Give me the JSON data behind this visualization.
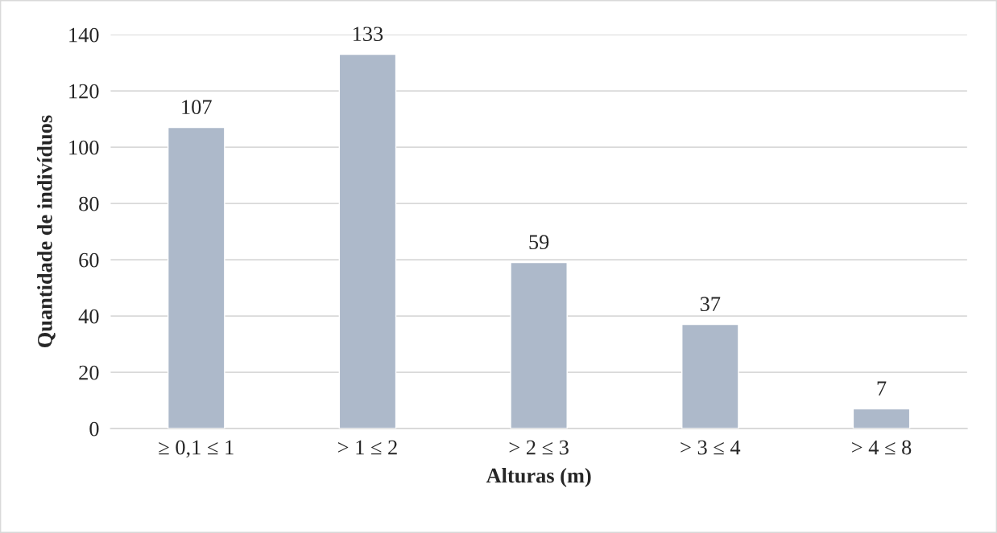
{
  "chart_data": {
    "type": "bar",
    "xlabel": "Alturas (m)",
    "ylabel": "Quantidade de indivíduos",
    "categories": [
      "≥ 0,1 ≤ 1",
      "> 1 ≤ 2",
      "> 2 ≤ 3",
      "> 3 ≤ 4",
      "> 4 ≤ 8"
    ],
    "values": [
      107,
      133,
      59,
      37,
      7
    ],
    "color": "#adb9ca",
    "ylim": [
      0,
      140
    ],
    "yticks": [
      0,
      20,
      40,
      60,
      80,
      100,
      120,
      140
    ],
    "grid": "y",
    "data_labels": true,
    "legend": false
  }
}
